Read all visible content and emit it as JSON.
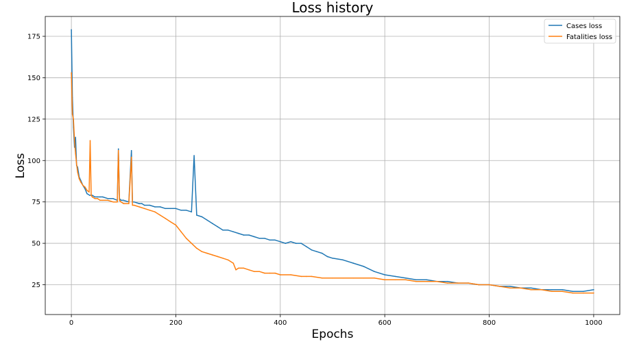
{
  "chart_data": {
    "type": "line",
    "title": "Loss history",
    "xlabel": "Epochs",
    "ylabel": "Loss",
    "xlim": [
      -50,
      1050
    ],
    "ylim": [
      7,
      187
    ],
    "xticks": [
      0,
      200,
      400,
      600,
      800,
      1000
    ],
    "yticks": [
      25,
      50,
      75,
      100,
      125,
      150,
      175
    ],
    "grid": true,
    "legend_position": "upper right",
    "series": [
      {
        "name": "Cases loss",
        "color": "#1f77b4",
        "x": [
          0,
          2,
          4,
          6,
          8,
          10,
          12,
          15,
          18,
          22,
          26,
          30,
          35,
          40,
          45,
          50,
          55,
          60,
          70,
          80,
          88,
          90,
          92,
          95,
          100,
          110,
          115,
          117,
          120,
          130,
          135,
          140,
          150,
          160,
          170,
          180,
          190,
          200,
          210,
          220,
          230,
          235,
          240,
          250,
          260,
          270,
          280,
          290,
          300,
          310,
          320,
          330,
          340,
          350,
          360,
          370,
          380,
          390,
          400,
          410,
          420,
          430,
          440,
          450,
          460,
          470,
          480,
          490,
          500,
          520,
          540,
          560,
          580,
          600,
          620,
          640,
          660,
          680,
          700,
          720,
          740,
          760,
          780,
          800,
          820,
          840,
          860,
          880,
          900,
          920,
          940,
          960,
          980,
          1000
        ],
        "y": [
          179,
          138,
          120,
          108,
          114,
          97,
          96,
          90,
          88,
          85,
          83,
          80,
          79,
          79,
          78,
          78,
          78,
          78,
          77,
          77,
          76,
          107,
          77,
          76,
          76,
          75,
          106,
          75,
          75,
          74,
          74,
          73,
          73,
          72,
          72,
          71,
          71,
          71,
          70,
          70,
          69,
          103,
          67,
          66,
          64,
          62,
          60,
          58,
          58,
          57,
          56,
          55,
          55,
          54,
          53,
          53,
          52,
          52,
          51,
          50,
          51,
          50,
          50,
          48,
          46,
          45,
          44,
          42,
          41,
          40,
          38,
          36,
          33,
          31,
          30,
          29,
          28,
          28,
          27,
          27,
          26,
          26,
          25,
          25,
          24,
          24,
          23,
          23,
          22,
          22,
          22,
          21,
          21,
          22
        ]
      },
      {
        "name": "Fatalities loss",
        "color": "#ff7f0e",
        "x": [
          0,
          2,
          4,
          6,
          8,
          10,
          12,
          15,
          18,
          22,
          26,
          30,
          34,
          36,
          38,
          40,
          45,
          50,
          55,
          60,
          70,
          80,
          88,
          90,
          92,
          95,
          100,
          110,
          115,
          117,
          120,
          130,
          140,
          150,
          160,
          170,
          180,
          190,
          200,
          210,
          220,
          230,
          240,
          250,
          260,
          270,
          280,
          290,
          300,
          310,
          315,
          320,
          330,
          340,
          350,
          360,
          370,
          380,
          390,
          400,
          420,
          440,
          450,
          460,
          480,
          500,
          520,
          540,
          560,
          580,
          600,
          620,
          640,
          660,
          680,
          700,
          720,
          740,
          760,
          780,
          800,
          820,
          840,
          860,
          880,
          900,
          920,
          940,
          960,
          980,
          1000
        ],
        "y": [
          153,
          128,
          125,
          112,
          104,
          98,
          93,
          89,
          87,
          85,
          84,
          82,
          81,
          112,
          79,
          78,
          77,
          77,
          76,
          76,
          76,
          75,
          75,
          106,
          76,
          75,
          74,
          74,
          102,
          73,
          73,
          72,
          71,
          70,
          69,
          67,
          65,
          63,
          61,
          57,
          53,
          50,
          47,
          45,
          44,
          43,
          42,
          41,
          40,
          38,
          34,
          35,
          35,
          34,
          33,
          33,
          32,
          32,
          32,
          31,
          31,
          30,
          30,
          30,
          29,
          29,
          29,
          29,
          29,
          29,
          28,
          28,
          28,
          27,
          27,
          27,
          26,
          26,
          26,
          25,
          25,
          24,
          23,
          23,
          22,
          22,
          21,
          21,
          20,
          20,
          20
        ]
      }
    ]
  }
}
